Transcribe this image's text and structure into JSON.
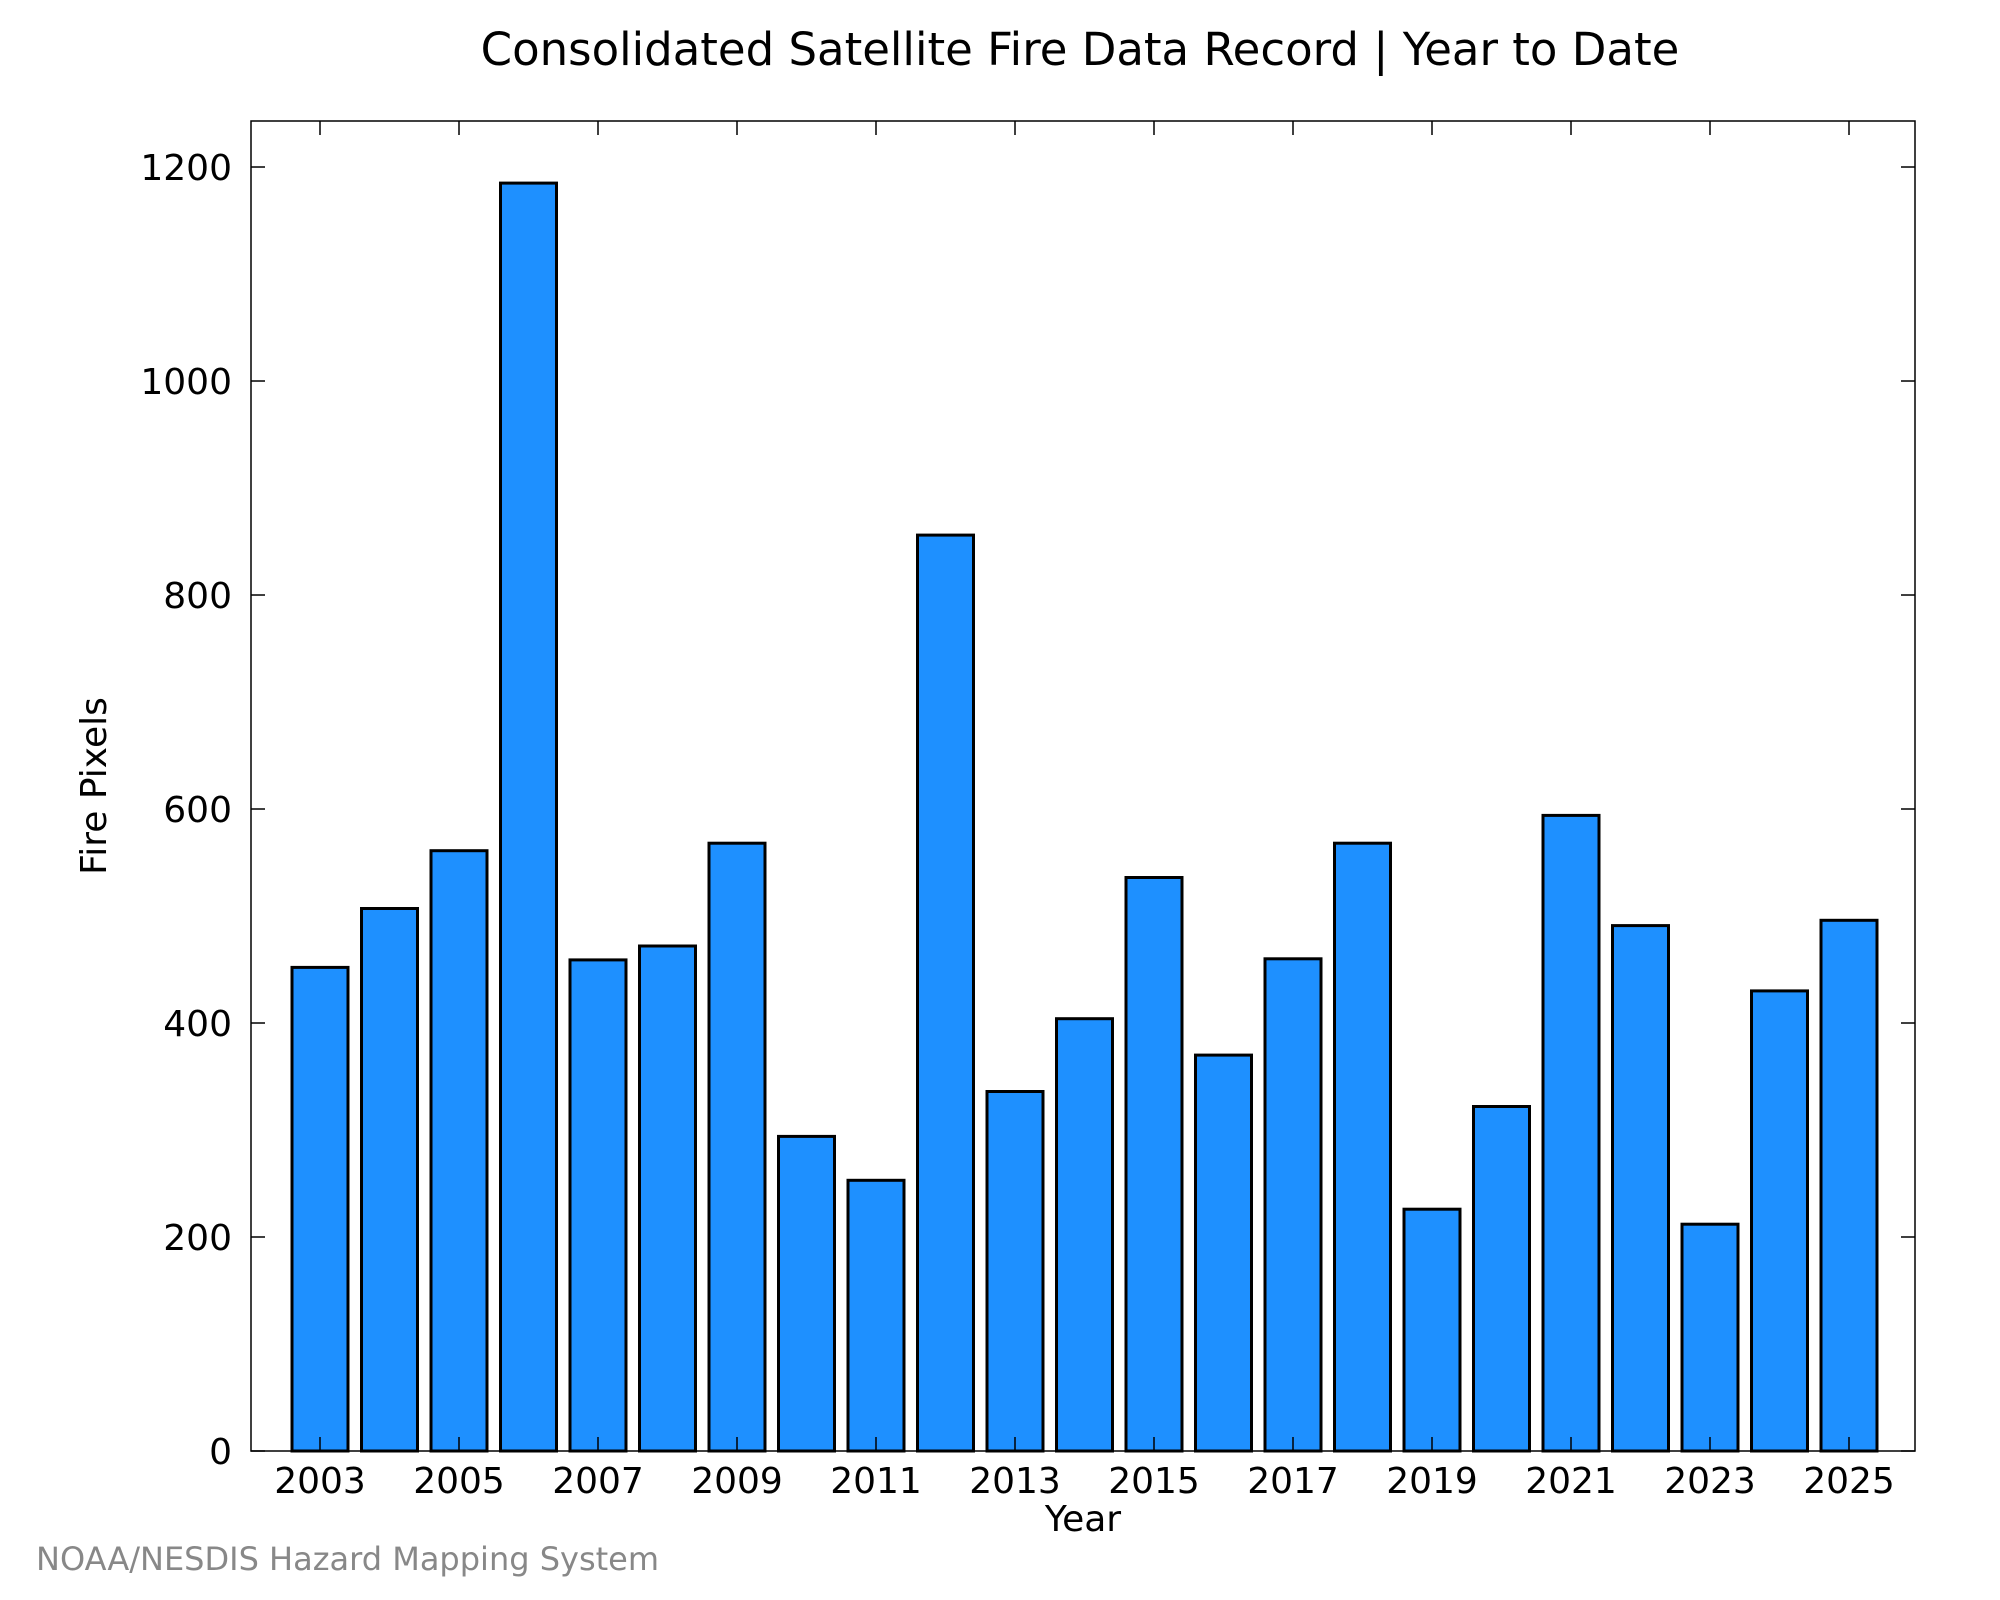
{
  "chart_data": {
    "type": "bar",
    "title": "Consolidated Satellite Fire Data Record | Year to Date",
    "xlabel": "Year",
    "ylabel": "Fire Pixels",
    "categories": [
      "2003",
      "2004",
      "2005",
      "2006",
      "2007",
      "2008",
      "2009",
      "2010",
      "2011",
      "2012",
      "2013",
      "2014",
      "2015",
      "2016",
      "2017",
      "2018",
      "2019",
      "2020",
      "2021",
      "2022",
      "2023",
      "2024",
      "2025"
    ],
    "values": [
      452,
      507,
      561,
      1185,
      459,
      472,
      568,
      294,
      253,
      856,
      336,
      404,
      536,
      370,
      460,
      568,
      226,
      322,
      594,
      491,
      212,
      430,
      496
    ],
    "x_tick_labels": [
      "2003",
      "2005",
      "2007",
      "2009",
      "2011",
      "2013",
      "2015",
      "2017",
      "2019",
      "2021",
      "2023",
      "2025"
    ],
    "y_ticks": [
      0,
      200,
      400,
      600,
      800,
      1000,
      1200
    ],
    "ylim": [
      0,
      1243
    ],
    "grid": false,
    "bar_color": "#1e90ff",
    "edge_color": "#000000"
  },
  "credit": "NOAA/NESDIS Hazard Mapping System"
}
